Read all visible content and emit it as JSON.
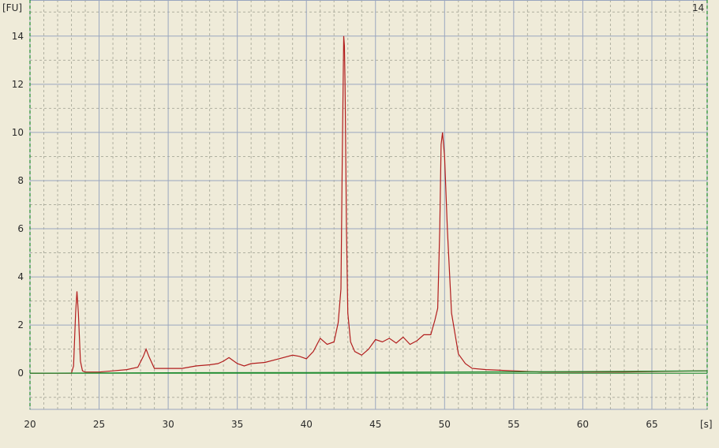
{
  "chart_data": {
    "type": "line",
    "xlabel": "[s]",
    "ylabel": "[FU]",
    "corner_value": "14",
    "xlim": [
      20,
      69
    ],
    "ylim": [
      -1.5,
      15.5
    ],
    "x_ticks": [
      20,
      25,
      30,
      35,
      40,
      45,
      50,
      55,
      60,
      65
    ],
    "y_ticks": [
      0,
      2,
      4,
      6,
      8,
      10,
      12,
      14
    ],
    "grid": true,
    "colors": {
      "background": "#efebd9",
      "series": "#b21d1d",
      "baseline": "#1b8a2d",
      "grid": "#9aa6bf"
    },
    "series": [
      {
        "x": [
          20,
          21,
          22,
          23,
          23.15,
          23.3,
          23.4,
          23.5,
          23.65,
          23.8,
          24,
          25,
          26,
          27,
          27.8,
          28.2,
          28.4,
          28.6,
          29,
          30,
          31,
          32,
          33,
          33.6,
          34,
          34.4,
          35,
          35.5,
          36,
          37,
          38,
          39,
          39.5,
          40,
          40.5,
          41,
          41.5,
          42,
          42.3,
          42.5,
          42.6,
          42.7,
          42.75,
          42.8,
          42.9,
          43,
          43.2,
          43.5,
          44,
          44.5,
          45,
          45.5,
          46,
          46.5,
          47,
          47.5,
          48,
          48.5,
          49,
          49.3,
          49.5,
          49.65,
          49.75,
          49.85,
          50,
          50.2,
          50.5,
          51,
          51.5,
          52,
          53,
          55,
          57,
          60,
          63,
          66,
          69
        ],
        "y": [
          0,
          0,
          0,
          0,
          0.3,
          2.5,
          3.4,
          2.5,
          0.5,
          0.1,
          0.05,
          0.05,
          0.1,
          0.15,
          0.25,
          0.7,
          1.0,
          0.7,
          0.2,
          0.2,
          0.2,
          0.3,
          0.35,
          0.4,
          0.5,
          0.65,
          0.4,
          0.3,
          0.4,
          0.45,
          0.6,
          0.75,
          0.7,
          0.6,
          0.9,
          1.45,
          1.2,
          1.3,
          2.1,
          3.5,
          9.0,
          14.0,
          13.6,
          12.0,
          6.0,
          2.5,
          1.3,
          0.9,
          0.75,
          1.0,
          1.4,
          1.3,
          1.45,
          1.25,
          1.5,
          1.2,
          1.35,
          1.6,
          1.6,
          2.2,
          2.7,
          6.0,
          9.5,
          10.0,
          9.0,
          6.0,
          2.5,
          0.8,
          0.4,
          0.2,
          0.15,
          0.1,
          0.05,
          0.05,
          0.05,
          0.08,
          0.1
        ]
      },
      {
        "x": [
          20,
          30,
          40,
          50,
          60,
          69
        ],
        "y": [
          0,
          0.02,
          0.03,
          0.05,
          0.07,
          0.1
        ]
      }
    ]
  }
}
